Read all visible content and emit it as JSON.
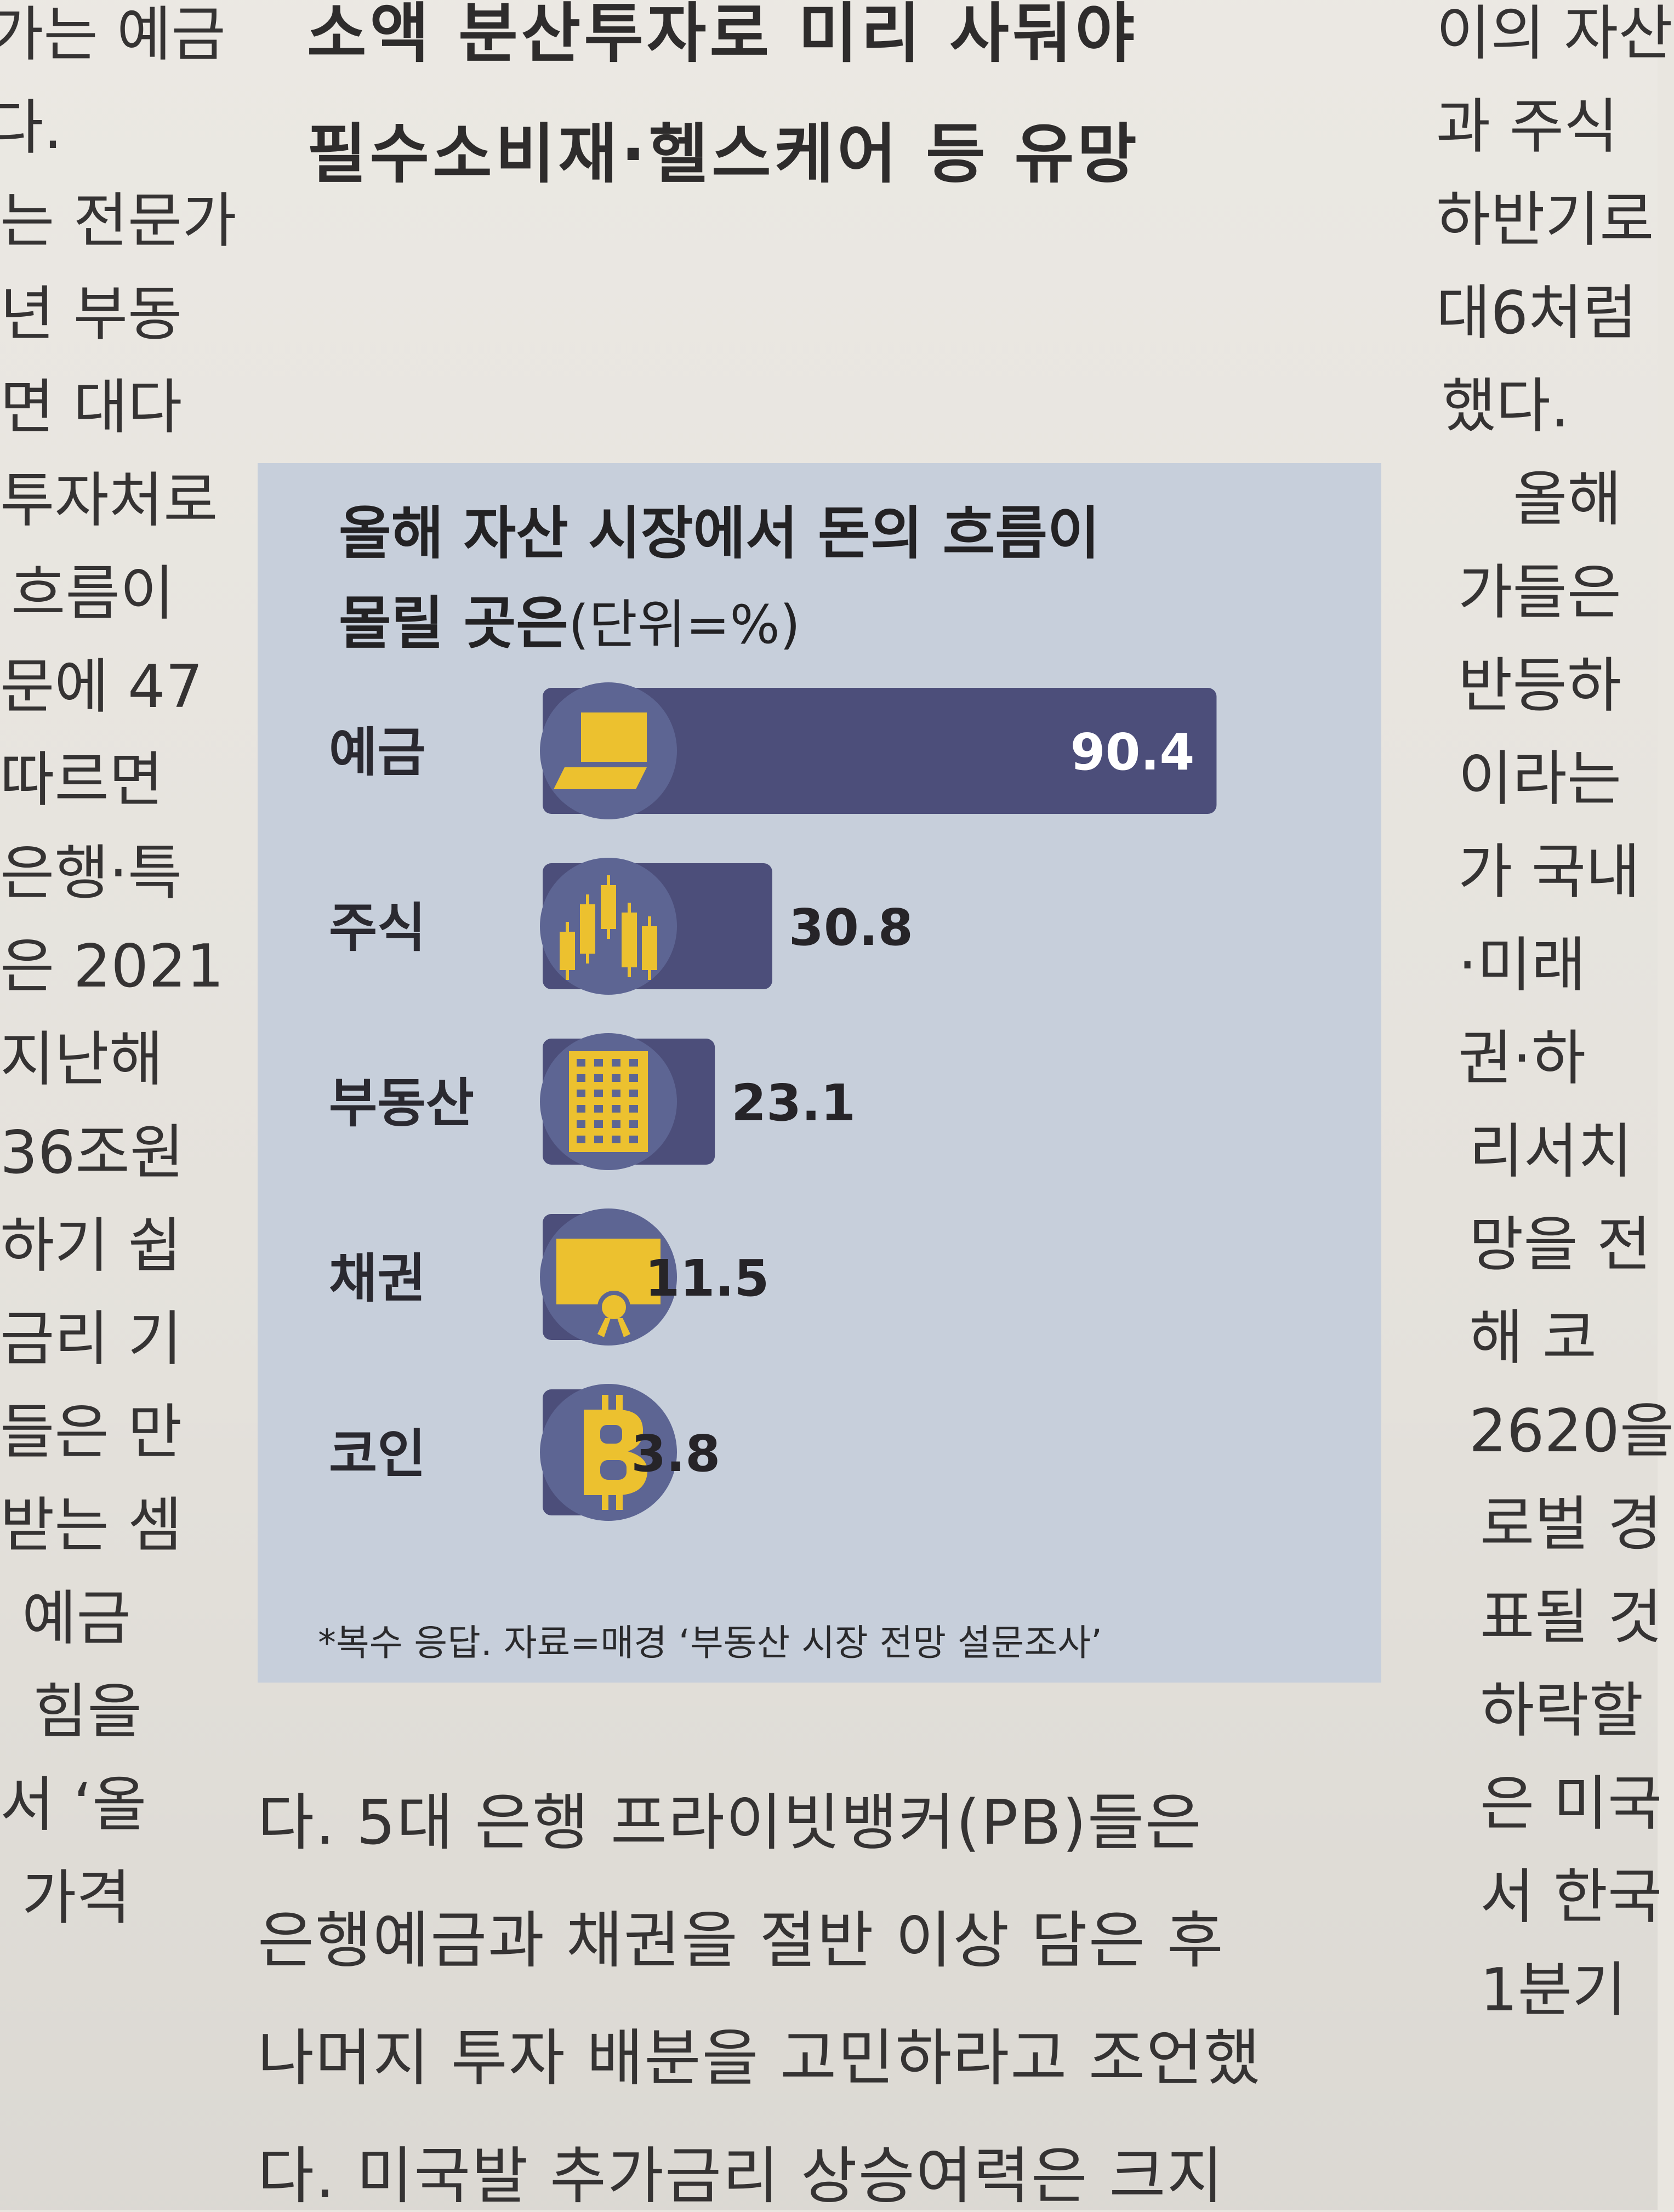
{
  "article": {
    "headline": [
      "소액 분산투자로 미리 사둬야",
      "필수소비재·헬스케어 등 유망"
    ],
    "left_column": [
      "가는 예금",
      "다.",
      "는 전문가",
      "년 부동",
      "면 대다",
      "투자처로",
      "흐름이",
      "문에 47",
      "따르면",
      "은행·특",
      "은 2021",
      "지난해",
      "36조원",
      "하기 쉽",
      "금리 기",
      "들은 만",
      "받는 셈",
      "예금",
      "힘을",
      "서 ‘올",
      "가격"
    ],
    "right_column": [
      "이의 자산",
      "과 주식",
      "하반기로",
      "대6처럼",
      "했다.",
      "올해",
      "가들은",
      "반등하",
      "이라는",
      "가 국내",
      "·미래",
      "권·하",
      "리서치",
      "망을 전",
      "해 코",
      "2620을",
      "로벌 경",
      "표될 것",
      "하락할",
      "은 미국",
      "서 한국",
      "1분기"
    ],
    "bottom_text": [
      "다. 5대 은행 프라이빗뱅커(PB)들은",
      "은행예금과 채권을 절반 이상 담은 후",
      "나머지 투자 배분을 고민하라고 조언했",
      "다. 미국발 추가금리 상승여력은 크지"
    ]
  },
  "chart_data": {
    "type": "bar",
    "orientation": "horizontal",
    "title": [
      "올해 자산 시장에서 돈의 흐름이",
      "몰릴 곳은"
    ],
    "unit_label": "(단위=%)",
    "categories": [
      "예금",
      "주식",
      "부동산",
      "채권",
      "코인"
    ],
    "values": [
      90.4,
      30.8,
      23.1,
      11.5,
      3.8
    ],
    "icons": [
      "laptop-icon",
      "candlestick-icon",
      "building-icon",
      "certificate-icon",
      "bitcoin-icon"
    ],
    "footnote": "*복수 응답. 자료=매경 ‘부동산 시장 전망 설문조사’",
    "xlim": [
      0,
      100
    ],
    "grid": false,
    "legend": "none",
    "colors": {
      "bar": "#4c4e7a",
      "icon_circle": "#5d6593",
      "icon": "#ecc12f",
      "background": "#c7cfdb"
    }
  }
}
